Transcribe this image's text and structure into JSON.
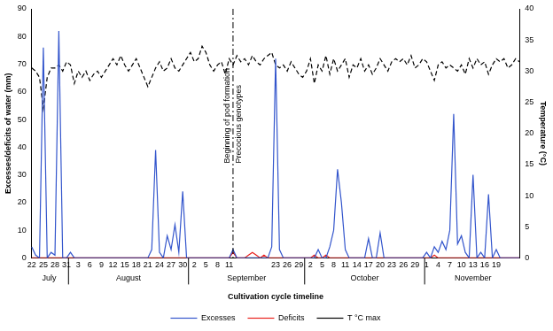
{
  "chart_data": {
    "type": "line",
    "xlabel": "Cultivation cycle timeline",
    "ylabel": "Excesses/deficits of water (mm)",
    "y2label": "Temperature (°C)",
    "categories": [
      "22",
      null,
      null,
      "25",
      null,
      null,
      "28",
      null,
      null,
      "31",
      null,
      null,
      "3",
      null,
      null,
      "6",
      null,
      null,
      "9",
      null,
      null,
      "12",
      null,
      null,
      "15",
      null,
      null,
      "18",
      null,
      null,
      "21",
      null,
      null,
      "24",
      null,
      null,
      "27",
      null,
      null,
      "30",
      null,
      null,
      "2",
      null,
      null,
      "5",
      null,
      null,
      "8",
      null,
      null,
      "11",
      null,
      null,
      null,
      null,
      null,
      null,
      null,
      null,
      null,
      null,
      null,
      "23",
      null,
      null,
      "26",
      null,
      null,
      "29",
      null,
      null,
      "2",
      null,
      null,
      "5",
      null,
      null,
      "8",
      null,
      null,
      "11",
      null,
      null,
      "14",
      null,
      null,
      "17",
      null,
      null,
      "20",
      null,
      null,
      "23",
      null,
      null,
      "26",
      null,
      null,
      "29",
      null,
      null,
      "1",
      null,
      null,
      "4",
      null,
      null,
      "7",
      null,
      null,
      "10",
      null,
      null,
      "13",
      null,
      null,
      "16",
      null,
      null,
      "19",
      null,
      null,
      null,
      null,
      null,
      null
    ],
    "months": [
      "July",
      "August",
      "September",
      "October",
      "November"
    ],
    "series": [
      {
        "name": "Excesses",
        "color": "#3355cc",
        "line_style": "solid",
        "axis": "y",
        "values": [
          4,
          1,
          0,
          76,
          0,
          2,
          1,
          82,
          0,
          0,
          2,
          0,
          0,
          0,
          0,
          0,
          0,
          0,
          0,
          0,
          0,
          0,
          0,
          0,
          0,
          0,
          0,
          0,
          0,
          0,
          0,
          3,
          39,
          2,
          0,
          8,
          3,
          12,
          2,
          24,
          0,
          0,
          0,
          0,
          0,
          0,
          0,
          0,
          0,
          0,
          0,
          0,
          3,
          0,
          0,
          0,
          0,
          0,
          0,
          0,
          0,
          0,
          4,
          72,
          3,
          0,
          0,
          0,
          0,
          0,
          0,
          0,
          0,
          0,
          3,
          0,
          0,
          4,
          10,
          32,
          20,
          3,
          0,
          0,
          0,
          0,
          0,
          7,
          0,
          0,
          9,
          0,
          0,
          0,
          0,
          0,
          0,
          0,
          0,
          0,
          0,
          0,
          2,
          0,
          4,
          2,
          6,
          3,
          10,
          52,
          5,
          8,
          2,
          0,
          30,
          0,
          2,
          0,
          23,
          0,
          3,
          0,
          0,
          0,
          0,
          0,
          0
        ]
      },
      {
        "name": "Deficits",
        "color": "#e8201c",
        "line_style": "solid",
        "axis": "y",
        "values": [
          0,
          0,
          0,
          0,
          0,
          0,
          0,
          0,
          0,
          0,
          0,
          0,
          0,
          0,
          0,
          0,
          0,
          0,
          0,
          0,
          0,
          0,
          0,
          0,
          0,
          0,
          0,
          0,
          0,
          0,
          0,
          0,
          0,
          0,
          0,
          0,
          0,
          0,
          0,
          0,
          0,
          0,
          0,
          0,
          0,
          0,
          0,
          0,
          0,
          0,
          0,
          0,
          2,
          0,
          0,
          0,
          1,
          2,
          1,
          0,
          1,
          0,
          0,
          0,
          0,
          0,
          0,
          0,
          0,
          0,
          0,
          0,
          0,
          1,
          0,
          0,
          1,
          0,
          0,
          0,
          0,
          0,
          0,
          0,
          0,
          0,
          0,
          0,
          0,
          0,
          0,
          0,
          0,
          0,
          0,
          0,
          0,
          0,
          0,
          0,
          0,
          0,
          0,
          0,
          1,
          0,
          0,
          0,
          0,
          0,
          0,
          0,
          0,
          0,
          0,
          0,
          0,
          0,
          0,
          0,
          0,
          0,
          0,
          0,
          0,
          0,
          0
        ]
      },
      {
        "name": "T °C max",
        "color": "#000000",
        "line_style": "dashed",
        "axis": "y2",
        "values": [
          30.5,
          30,
          29,
          24,
          29,
          30.5,
          30.5,
          31,
          30,
          31.5,
          31,
          28,
          30,
          29,
          30,
          28.5,
          29.5,
          30,
          29,
          30,
          31,
          32,
          31,
          32.5,
          31,
          30,
          31,
          32,
          30.5,
          29,
          27.5,
          29,
          30.5,
          31.5,
          30,
          30.5,
          32,
          30.5,
          30,
          31,
          32,
          33,
          31.5,
          32,
          34,
          33,
          31,
          30,
          31,
          31.5,
          29.5,
          32,
          31,
          32.5,
          31.5,
          32,
          31,
          32.5,
          31.5,
          31,
          32,
          32.5,
          33,
          31,
          30.5,
          31,
          30,
          31.5,
          30.5,
          29.5,
          29,
          30,
          32,
          28,
          31,
          30,
          32.5,
          29.5,
          32,
          30,
          31,
          32,
          29,
          31,
          30.5,
          32,
          30,
          31,
          29.5,
          30.5,
          32,
          31,
          30,
          31.5,
          32,
          31.5,
          32,
          31,
          32.5,
          30.5,
          31,
          32,
          31.5,
          30,
          28.5,
          31,
          31.5,
          30.5,
          31,
          30.5,
          30,
          31,
          29.5,
          32,
          30.5,
          32,
          31,
          31.5,
          29.5,
          31,
          32,
          31.5,
          32,
          30.5,
          31,
          32,
          31.5
        ]
      }
    ],
    "ylim": [
      0,
      90
    ],
    "yticks": [
      0,
      10,
      20,
      30,
      40,
      50,
      60,
      70,
      80,
      90
    ],
    "y2lim": [
      0,
      40
    ],
    "y2ticks": [
      0,
      5,
      10,
      15,
      20,
      25,
      30,
      35,
      40
    ],
    "annotations": [
      {
        "text": [
          "Beginning of pod formation",
          "Precocious genotypes"
        ],
        "month": "September",
        "day": 12
      }
    ],
    "grid": false,
    "legend": "bottom"
  }
}
